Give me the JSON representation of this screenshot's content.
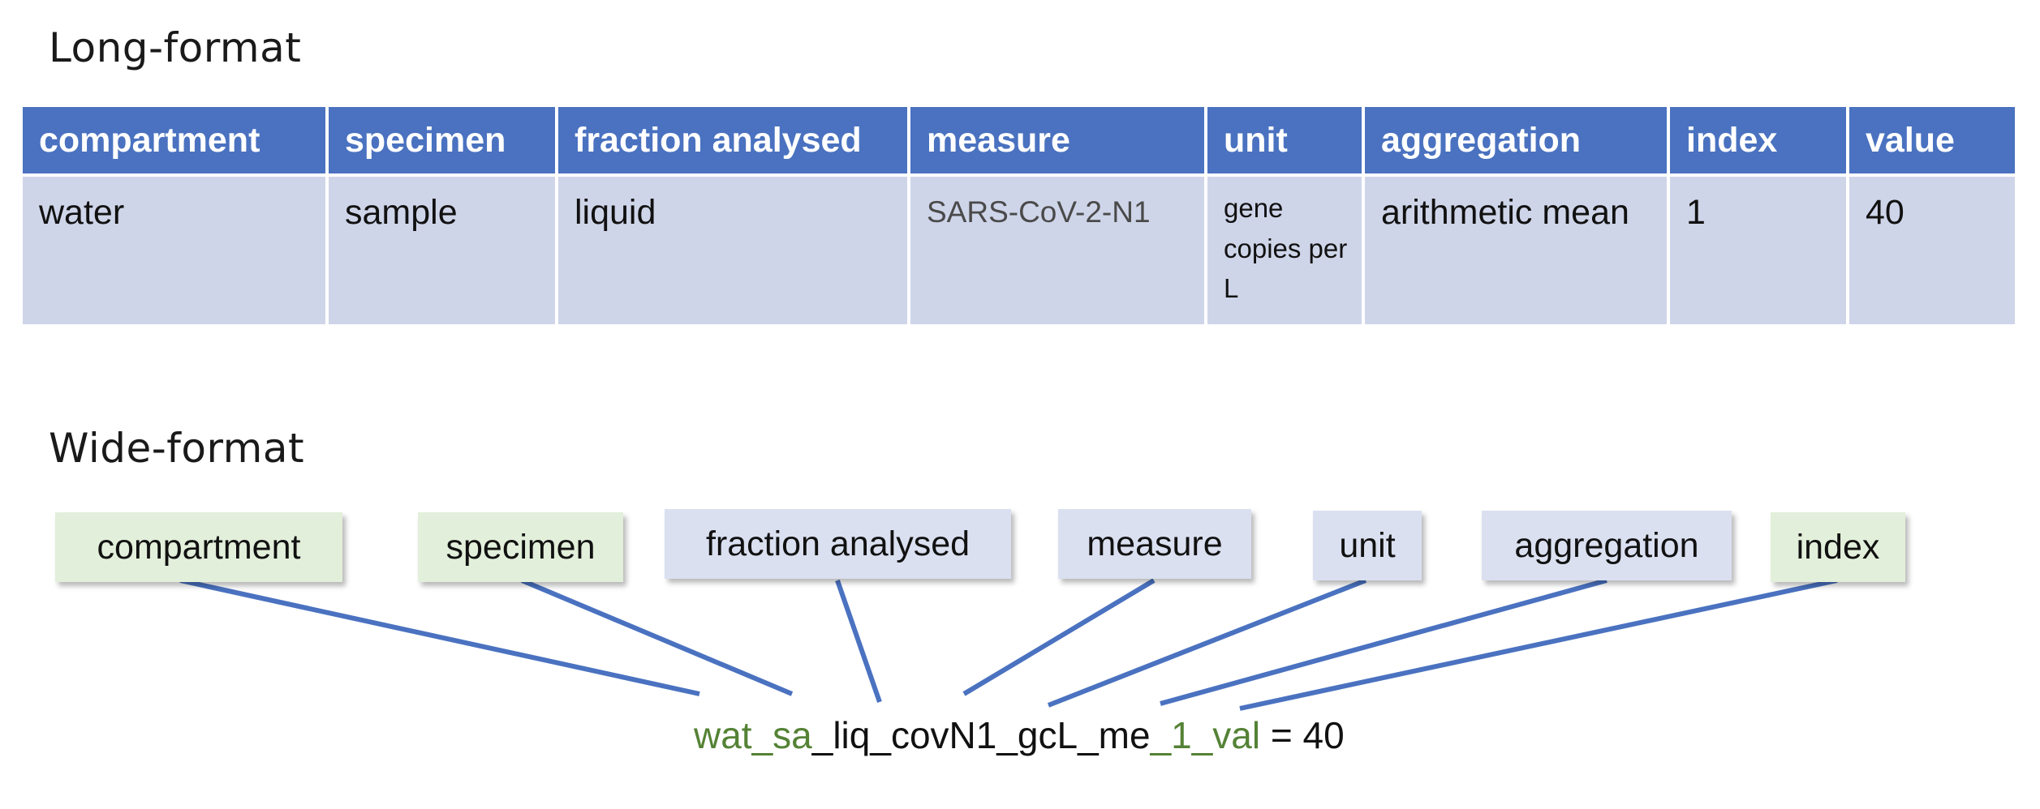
{
  "long_format": {
    "title": "Long-format",
    "headers": [
      "compartment",
      "specimen",
      "fraction analysed",
      "measure",
      "unit",
      "aggregation",
      "index",
      "value"
    ],
    "row": [
      "water",
      "sample",
      "liquid",
      "SARS-CoV-2-N1",
      "gene copies per L",
      "arithmetic mean",
      "1",
      "40"
    ]
  },
  "wide_format": {
    "title": "Wide-format",
    "labels": [
      {
        "text": "compartment",
        "color": "#e2efda"
      },
      {
        "text": "specimen",
        "color": "#e2efda"
      },
      {
        "text": "fraction analysed",
        "color": "#dae0f0"
      },
      {
        "text": "measure",
        "color": "#dae0f0"
      },
      {
        "text": "unit",
        "color": "#dae0f0"
      },
      {
        "text": "aggregation",
        "color": "#dae0f0"
      },
      {
        "text": "index",
        "color": "#e2efda"
      }
    ],
    "formula": {
      "parts": [
        {
          "text": "wat_sa",
          "tone": "green"
        },
        {
          "text": "_liq_covN1_gcL_me",
          "tone": "black"
        },
        {
          "text": "_1_val",
          "tone": "green"
        },
        {
          "text": " = 40",
          "tone": "black"
        }
      ]
    }
  },
  "colors": {
    "header_blue": "#4a72c0",
    "cell_lavender": "#cfd5e9",
    "label_green": "#e2efda",
    "label_blue": "#dae0f0",
    "connector_blue": "#4a72c0",
    "formula_green": "#548235"
  }
}
